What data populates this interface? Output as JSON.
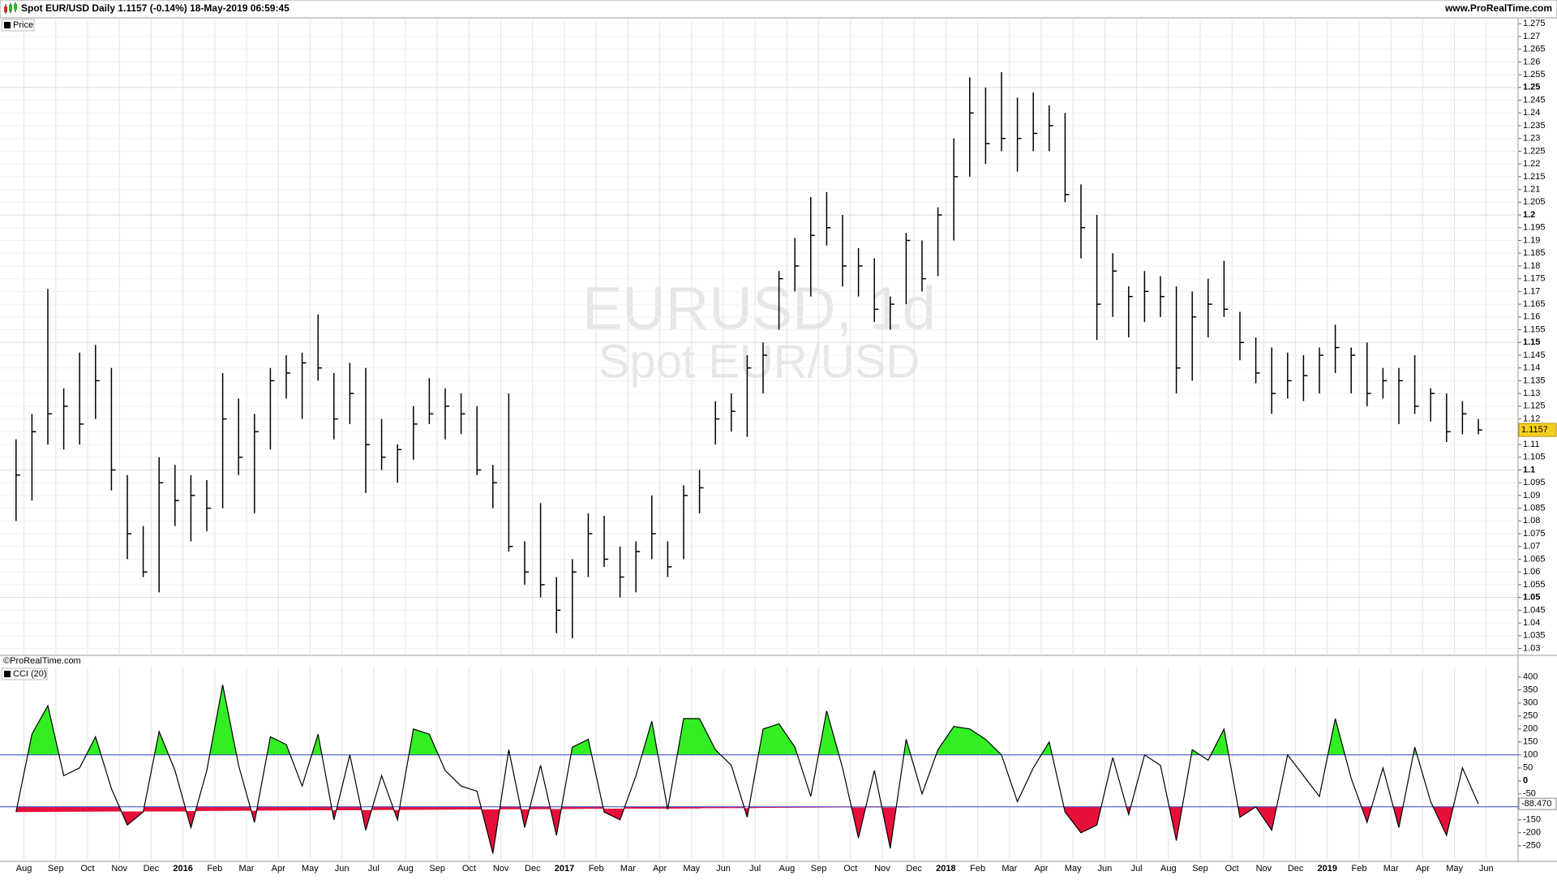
{
  "chart_data": [
    {
      "type": "ohlc",
      "title": "Spot EUR/USD Daily 1.1157 (-0.14%) 18-May-2019 06:59:45",
      "source": "www.ProRealTime.com",
      "legend": "Price",
      "watermark": [
        "EURUSD, 1d",
        "Spot EUR/USD"
      ],
      "color": "#000000",
      "last_color": "#f5d020",
      "categories": [
        null,
        "Aug",
        null,
        "Sep",
        null,
        "Oct",
        null,
        "Nov",
        null,
        "Dec",
        null,
        "2016",
        null,
        "Feb",
        null,
        "Mar",
        null,
        "Apr",
        null,
        "May",
        null,
        "Jun",
        null,
        "Jul",
        null,
        "Aug",
        null,
        "Sep",
        null,
        "Oct",
        null,
        "Nov",
        null,
        "Dec",
        null,
        "2017",
        null,
        "Feb",
        null,
        "Mar",
        null,
        "Apr",
        null,
        "May",
        null,
        "Jun",
        null,
        "Jul",
        null,
        "Aug",
        null,
        "Sep",
        null,
        "Oct",
        null,
        "Nov",
        null,
        "Dec",
        null,
        "2018",
        null,
        "Feb",
        null,
        "Mar",
        null,
        "Apr",
        null,
        "May",
        null,
        "Jun",
        null,
        "Jul",
        null,
        "Aug",
        null,
        "Sep",
        null,
        "Oct",
        null,
        "Nov",
        null,
        "Dec",
        null,
        "2019",
        null,
        "Feb",
        null,
        "Mar",
        null,
        "Apr",
        null,
        "May",
        null,
        "Jun"
      ],
      "high": [
        1.112,
        1.122,
        1.171,
        1.132,
        1.146,
        1.149,
        1.14,
        1.098,
        1.078,
        1.105,
        1.102,
        1.098,
        1.096,
        1.138,
        1.128,
        1.122,
        1.14,
        1.145,
        1.146,
        1.161,
        1.138,
        1.142,
        1.14,
        1.12,
        1.11,
        1.125,
        1.136,
        1.132,
        1.13,
        1.125,
        1.102,
        1.13,
        1.072,
        1.087,
        1.058,
        1.065,
        1.083,
        1.082,
        1.07,
        1.072,
        1.09,
        1.072,
        1.094,
        1.1,
        1.127,
        1.13,
        1.145,
        1.15,
        1.178,
        1.191,
        1.207,
        1.209,
        1.2,
        1.187,
        1.183,
        1.168,
        1.193,
        1.19,
        1.203,
        1.23,
        1.254,
        1.25,
        1.256,
        1.246,
        1.248,
        1.243,
        1.24,
        1.212,
        1.2,
        1.185,
        1.172,
        1.178,
        1.176,
        1.172,
        1.17,
        1.175,
        1.182,
        1.162,
        1.152,
        1.148,
        1.146,
        1.145,
        1.148,
        1.157,
        1.148,
        1.15,
        1.14,
        1.14,
        1.145,
        1.132,
        1.13,
        1.127,
        1.12,
        null
      ],
      "low": [
        1.08,
        1.088,
        1.11,
        1.108,
        1.11,
        1.12,
        1.092,
        1.065,
        1.058,
        1.052,
        1.078,
        1.072,
        1.076,
        1.085,
        1.098,
        1.083,
        1.108,
        1.128,
        1.12,
        1.135,
        1.112,
        1.118,
        1.091,
        1.1,
        1.095,
        1.104,
        1.118,
        1.112,
        1.114,
        1.098,
        1.085,
        1.068,
        1.055,
        1.05,
        1.036,
        1.034,
        1.058,
        1.062,
        1.05,
        1.052,
        1.065,
        1.058,
        1.065,
        1.083,
        1.11,
        1.115,
        1.113,
        1.13,
        1.155,
        1.17,
        1.168,
        1.188,
        1.172,
        1.168,
        1.158,
        1.155,
        1.165,
        1.17,
        1.176,
        1.19,
        1.215,
        1.22,
        1.225,
        1.217,
        1.225,
        1.225,
        1.205,
        1.183,
        1.151,
        1.16,
        1.152,
        1.158,
        1.16,
        1.13,
        1.135,
        1.152,
        1.16,
        1.143,
        1.134,
        1.122,
        1.128,
        1.127,
        1.13,
        1.138,
        1.13,
        1.125,
        1.128,
        1.118,
        1.122,
        1.119,
        1.111,
        1.114,
        1.114,
        null
      ],
      "close": [
        1.098,
        1.115,
        1.122,
        1.125,
        1.118,
        1.135,
        1.1,
        1.075,
        1.06,
        1.095,
        1.088,
        1.09,
        1.085,
        1.12,
        1.105,
        1.115,
        1.135,
        1.138,
        1.142,
        1.14,
        1.12,
        1.13,
        1.11,
        1.105,
        1.108,
        1.118,
        1.122,
        1.125,
        1.122,
        1.1,
        1.095,
        1.07,
        1.06,
        1.055,
        1.045,
        1.06,
        1.075,
        1.065,
        1.058,
        1.068,
        1.075,
        1.062,
        1.09,
        1.093,
        1.12,
        1.123,
        1.14,
        1.145,
        1.175,
        1.18,
        1.192,
        1.195,
        1.18,
        1.18,
        1.163,
        1.165,
        1.19,
        1.175,
        1.2,
        1.215,
        1.24,
        1.228,
        1.23,
        1.23,
        1.232,
        1.235,
        1.208,
        1.195,
        1.165,
        1.178,
        1.168,
        1.17,
        1.168,
        1.14,
        1.16,
        1.165,
        1.163,
        1.15,
        1.138,
        1.13,
        1.135,
        1.137,
        1.145,
        1.148,
        1.145,
        1.13,
        1.135,
        1.135,
        1.125,
        1.13,
        1.115,
        1.122,
        1.1157,
        null
      ],
      "ylim": [
        1.0273,
        1.2773
      ],
      "yticks": [
        1.03,
        1.035,
        1.04,
        1.045,
        1.05,
        1.055,
        1.06,
        1.065,
        1.07,
        1.075,
        1.08,
        1.085,
        1.09,
        1.095,
        1.1,
        1.105,
        1.11,
        1.115,
        1.12,
        1.125,
        1.13,
        1.135,
        1.14,
        1.145,
        1.15,
        1.155,
        1.16,
        1.165,
        1.17,
        1.175,
        1.18,
        1.185,
        1.19,
        1.195,
        1.2,
        1.205,
        1.21,
        1.215,
        1.22,
        1.225,
        1.23,
        1.235,
        1.24,
        1.245,
        1.25,
        1.255,
        1.26,
        1.265,
        1.27,
        1.275
      ],
      "grid": true
    },
    {
      "type": "line",
      "credit": "©ProRealTime.com",
      "legend": "CCI (20)",
      "color": "#000000",
      "above_color": "#33ee22",
      "below_color": "#e8103a",
      "level_color": "#3344cc",
      "levels": [
        100,
        -100
      ],
      "values": [
        -120,
        180,
        290,
        20,
        50,
        170,
        -30,
        -170,
        -120,
        190,
        40,
        -180,
        40,
        370,
        60,
        -160,
        170,
        140,
        -20,
        180,
        -150,
        100,
        -190,
        20,
        -150,
        200,
        180,
        40,
        -20,
        -40,
        -280,
        120,
        -180,
        60,
        -210,
        130,
        160,
        -120,
        -150,
        20,
        230,
        -110,
        240,
        240,
        120,
        60,
        -140,
        200,
        220,
        130,
        -60,
        270,
        50,
        -220,
        40,
        -260,
        160,
        -50,
        120,
        210,
        200,
        160,
        100,
        -80,
        50,
        150,
        -120,
        -200,
        -170,
        90,
        -130,
        100,
        60,
        -230,
        120,
        80,
        200,
        -140,
        -100,
        -190,
        100,
        20,
        -60,
        240,
        10,
        -160,
        50,
        -180,
        130,
        -80,
        -210,
        50,
        -88.47,
        null
      ],
      "last_value_label": "-88.470",
      "ylim": [
        -310,
        440
      ],
      "yticks": [
        -250,
        -200,
        -150,
        -50,
        0,
        50,
        100,
        150,
        200,
        250,
        300,
        350,
        400
      ]
    }
  ]
}
